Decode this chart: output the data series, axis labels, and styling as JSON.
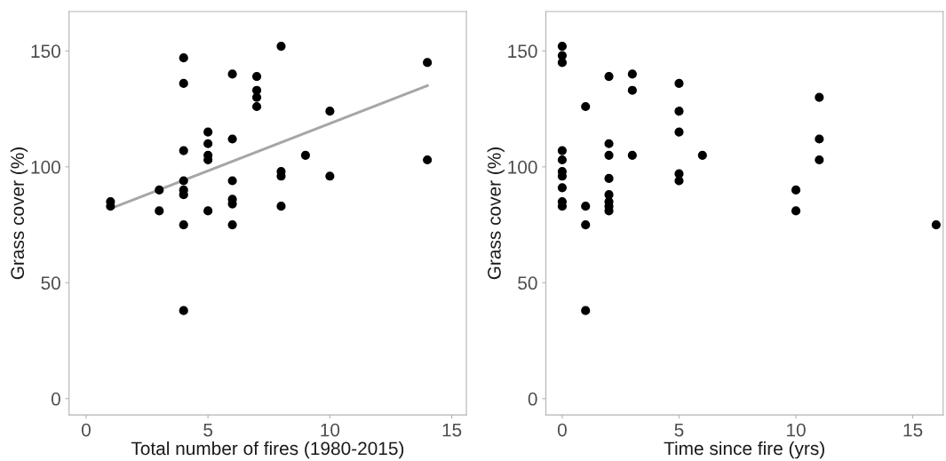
{
  "chart_data": [
    {
      "type": "scatter",
      "xlabel": "Total number of fires (1980-2015)",
      "ylabel": "Grass cover (%)",
      "xlim": [
        -0.7,
        15.6
      ],
      "ylim": [
        -7,
        167
      ],
      "xticks": [
        0,
        5,
        10,
        15
      ],
      "yticks": [
        0,
        50,
        100,
        150
      ],
      "grid": false,
      "series": [
        {
          "marker": "circle",
          "color": "#000000",
          "x": [
            1,
            1,
            3,
            3,
            4,
            4,
            4,
            4,
            4,
            4,
            4,
            4,
            5,
            5,
            5,
            5,
            5,
            6,
            6,
            6,
            6,
            6,
            6,
            7,
            7,
            7,
            7,
            8,
            8,
            8,
            8,
            9,
            10,
            10,
            14,
            14
          ],
          "values": [
            85,
            83,
            90,
            81,
            147,
            136,
            107,
            94,
            90,
            88,
            75,
            38,
            115,
            110,
            105,
            103,
            81,
            140,
            112,
            94,
            86,
            84,
            75,
            139,
            133,
            130,
            126,
            152,
            98,
            96,
            83,
            105,
            124,
            96,
            145,
            103
          ]
        },
        {
          "type": "line",
          "color": "#a6a6a6",
          "x": [
            1,
            14
          ],
          "values": [
            82,
            135
          ]
        }
      ]
    },
    {
      "type": "scatter",
      "xlabel": "Time since fire (yrs)",
      "ylabel": "Grass cover (%)",
      "xlim": [
        -0.7,
        16.3
      ],
      "ylim": [
        -7,
        167
      ],
      "xticks": [
        0,
        5,
        10,
        15
      ],
      "yticks": [
        0,
        50,
        100,
        150
      ],
      "grid": false,
      "series": [
        {
          "marker": "circle",
          "color": "#000000",
          "x": [
            0,
            0,
            0,
            0,
            0,
            0,
            0,
            0,
            0,
            0,
            1,
            1,
            1,
            1,
            2,
            2,
            2,
            2,
            2,
            2,
            2,
            2,
            3,
            3,
            3,
            5,
            5,
            5,
            5,
            5,
            6,
            10,
            10,
            11,
            11,
            11,
            16
          ],
          "values": [
            152,
            148,
            145,
            107,
            103,
            98,
            96,
            91,
            85,
            83,
            126,
            83,
            75,
            38,
            139,
            110,
            105,
            95,
            88,
            85,
            83,
            81,
            140,
            133,
            105,
            136,
            124,
            115,
            97,
            94,
            105,
            90,
            81,
            130,
            112,
            103,
            75
          ]
        }
      ]
    }
  ]
}
